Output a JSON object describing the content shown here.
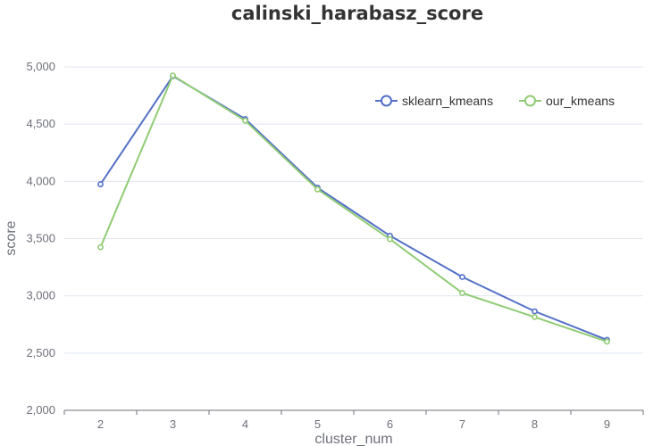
{
  "chart_data": {
    "type": "line",
    "title": "calinski_harabasz_score",
    "xlabel": "cluster_num",
    "ylabel": "score",
    "categories": [
      "2",
      "3",
      "4",
      "5",
      "6",
      "7",
      "8",
      "9"
    ],
    "ylim": [
      2000,
      5000
    ],
    "yticks": [
      "2,000",
      "2,500",
      "3,000",
      "3,500",
      "4,000",
      "4,500",
      "5,000"
    ],
    "grid": true,
    "legend": "top-right",
    "series": [
      {
        "name": "sklearn_kmeans",
        "color": "#5470c6",
        "values": [
          3975,
          4920,
          4545,
          3945,
          3525,
          3165,
          2865,
          2615
        ]
      },
      {
        "name": "our_kmeans",
        "color": "#91cc75",
        "values": [
          3425,
          4925,
          4530,
          3930,
          3495,
          3025,
          2815,
          2600
        ]
      }
    ]
  }
}
